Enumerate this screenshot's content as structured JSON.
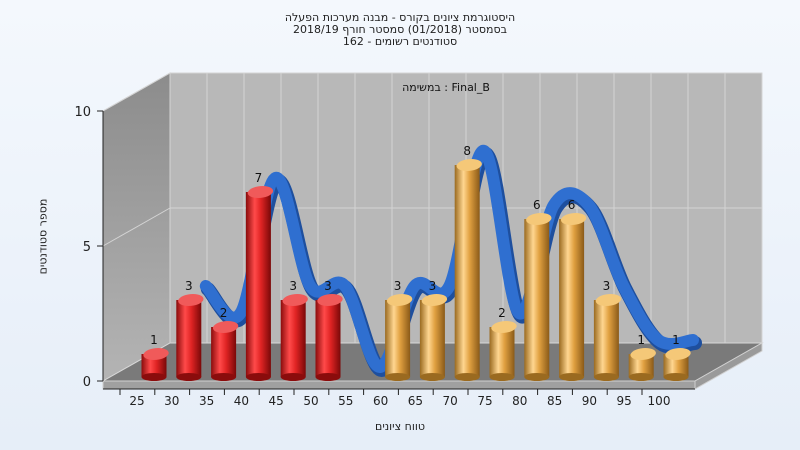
{
  "titles": [
    "היסטוגרמת ציונים בקורס - מבנה מערכות הפעלה",
    "בסמסטר  (01/2018)  סמסטר חורף  2018/19",
    "סטודנטים רשומים - 162"
  ],
  "chart_data": {
    "type": "bar",
    "annotation": "Final_B : במשימה",
    "xlabel": "טווח ציונים",
    "ylabel": "מספר סטודנטים",
    "ylim": [
      0,
      10
    ],
    "yticks": [
      0,
      5,
      10
    ],
    "categories": [
      "25",
      "30",
      "35",
      "40",
      "45",
      "50",
      "55",
      "60",
      "65",
      "70",
      "75",
      "80",
      "85",
      "90",
      "95",
      "100"
    ],
    "values": [
      1,
      3,
      2,
      7,
      3,
      3,
      0,
      3,
      3,
      8,
      2,
      6,
      6,
      3,
      1,
      1
    ],
    "colors": {
      "fail": "#e02424",
      "pass": "#e0a040",
      "curve": "#2f6fd0",
      "curve_dark": "#5a5a5a"
    },
    "grid": true
  }
}
